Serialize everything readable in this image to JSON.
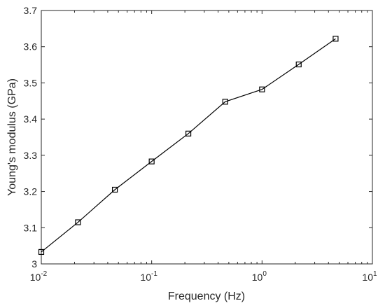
{
  "chart_data": {
    "type": "line",
    "x_scale": "log",
    "xlabel": "Frequency (Hz)",
    "ylabel": "Young's modulus (GPa)",
    "xlim": [
      0.01,
      10
    ],
    "ylim": [
      3.0,
      3.7
    ],
    "grid": false,
    "x_ticks": [
      {
        "value": 0.01,
        "base": "10",
        "exp": "-2"
      },
      {
        "value": 0.1,
        "base": "10",
        "exp": "-1"
      },
      {
        "value": 1,
        "base": "10",
        "exp": "0"
      },
      {
        "value": 10,
        "base": "10",
        "exp": "1"
      }
    ],
    "y_ticks": [
      {
        "value": 3.0,
        "label": "3"
      },
      {
        "value": 3.1,
        "label": "3.1"
      },
      {
        "value": 3.2,
        "label": "3.2"
      },
      {
        "value": 3.3,
        "label": "3.3"
      },
      {
        "value": 3.4,
        "label": "3.4"
      },
      {
        "value": 3.5,
        "label": "3.5"
      },
      {
        "value": 3.6,
        "label": "3.6"
      },
      {
        "value": 3.7,
        "label": "3.7"
      }
    ],
    "series": [
      {
        "marker": "square",
        "color": "#000000",
        "x": [
          0.01,
          0.0215,
          0.0464,
          0.1,
          0.215,
          0.464,
          1.0,
          2.15,
          4.64
        ],
        "y": [
          3.033,
          3.115,
          3.205,
          3.283,
          3.36,
          3.448,
          3.482,
          3.551,
          3.622
        ]
      }
    ]
  }
}
